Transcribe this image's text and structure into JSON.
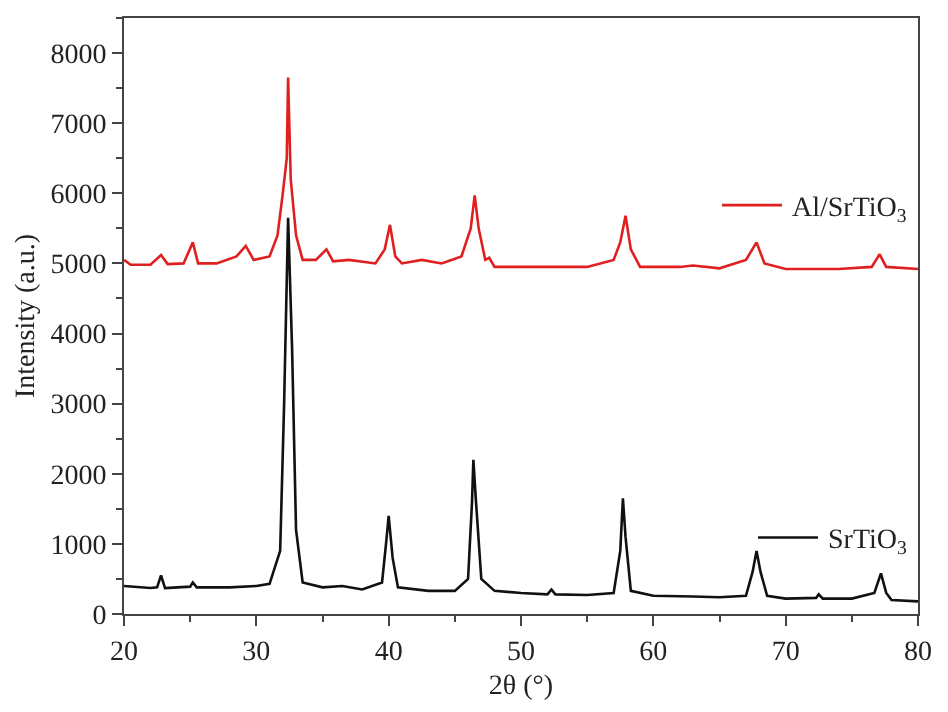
{
  "chart_data": {
    "type": "line",
    "xlabel": "2θ (°)",
    "ylabel": "Intensity (a.u.)",
    "xlim": [
      20,
      80
    ],
    "xticks": [
      20,
      30,
      40,
      50,
      60,
      70,
      80
    ],
    "ylim": [
      0,
      8500
    ],
    "yticks": [
      0,
      1000,
      2000,
      3000,
      4000,
      5000,
      6000,
      7000,
      8000
    ],
    "grid": false,
    "legend": "right",
    "marker": "none",
    "line_style": "solid",
    "series": [
      {
        "name": "Al/SrTiO$_{3}$",
        "color": "#e02020",
        "x": [
          20,
          20.5,
          22,
          22.8,
          23.3,
          24.5,
          25.2,
          25.6,
          27,
          28.5,
          29.2,
          29.8,
          31,
          31.6,
          32,
          32.3,
          32.4,
          32.6,
          33,
          33.5,
          34.5,
          35.3,
          35.8,
          37,
          39,
          39.7,
          40.1,
          40.5,
          41,
          42.5,
          44,
          45.5,
          46.2,
          46.5,
          46.8,
          47.3,
          47.6,
          48,
          50,
          52,
          55,
          57,
          57.5,
          57.9,
          58.3,
          59,
          62,
          63,
          65,
          67,
          67.8,
          68.4,
          70,
          74,
          76.5,
          77.1,
          77.6,
          80
        ],
        "values": [
          5050,
          4980,
          4980,
          5120,
          4990,
          5000,
          5300,
          5000,
          5000,
          5100,
          5250,
          5050,
          5100,
          5400,
          6000,
          6500,
          7650,
          6200,
          5400,
          5050,
          5050,
          5200,
          5030,
          5050,
          5000,
          5200,
          5550,
          5100,
          5000,
          5050,
          5000,
          5100,
          5500,
          5970,
          5500,
          5050,
          5080,
          4950,
          4950,
          4950,
          4950,
          5050,
          5300,
          5680,
          5200,
          4950,
          4950,
          4970,
          4930,
          5050,
          5300,
          5000,
          4920,
          4920,
          4950,
          5130,
          4950,
          4920
        ]
      },
      {
        "name": "SrTiO$_{3}$",
        "color": "#111111",
        "x": [
          20,
          22,
          22.5,
          22.8,
          23.1,
          25,
          25.2,
          25.5,
          28,
          30,
          31,
          31.8,
          32.1,
          32.4,
          32.7,
          33,
          33.5,
          35,
          36.5,
          38,
          39.5,
          39.8,
          40,
          40.3,
          40.7,
          43,
          45,
          46,
          46.3,
          46.4,
          46.6,
          47,
          48,
          50,
          52,
          52.3,
          52.6,
          55,
          57,
          57.5,
          57.7,
          57.9,
          58.3,
          60,
          63,
          65,
          67,
          67.5,
          67.8,
          68.1,
          68.6,
          70,
          72.3,
          72.5,
          72.8,
          75,
          76.7,
          77.2,
          77.6,
          78,
          80
        ],
        "values": [
          400,
          370,
          380,
          550,
          370,
          390,
          450,
          380,
          380,
          400,
          430,
          900,
          3000,
          5650,
          3800,
          1200,
          450,
          380,
          400,
          350,
          450,
          1000,
          1400,
          800,
          380,
          330,
          330,
          500,
          1600,
          2200,
          1600,
          500,
          330,
          300,
          280,
          350,
          280,
          270,
          300,
          900,
          1650,
          1100,
          330,
          260,
          250,
          240,
          260,
          600,
          900,
          600,
          260,
          220,
          230,
          280,
          220,
          220,
          300,
          580,
          300,
          200,
          180
        ]
      }
    ]
  }
}
